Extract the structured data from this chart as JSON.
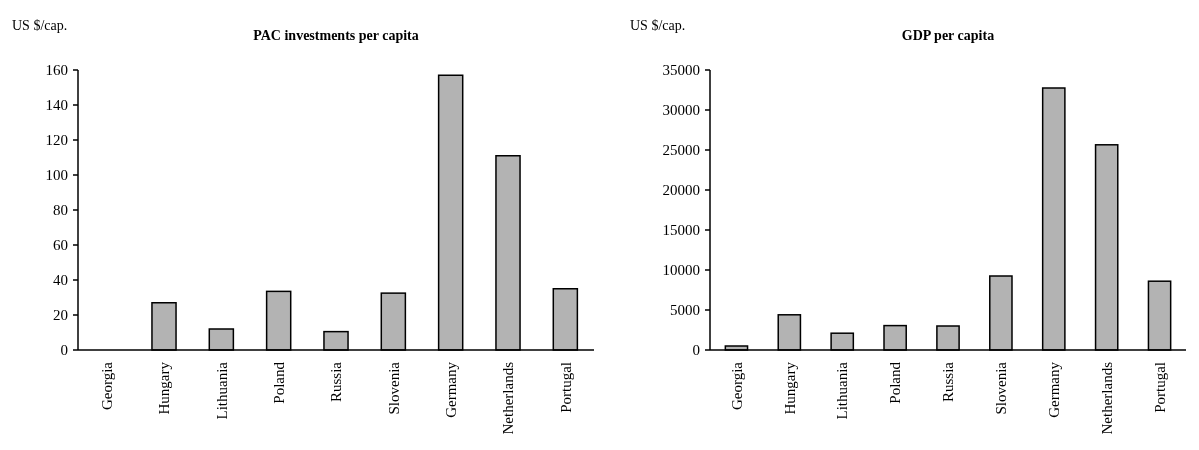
{
  "chart_data": [
    {
      "type": "bar",
      "title": "PAC investments per capita",
      "ylabel": "US $/cap.",
      "categories": [
        "Georgia",
        "Hungary",
        "Lithuania",
        "Poland",
        "Russia",
        "Slovenia",
        "Germany",
        "Netherlands",
        "Portugal"
      ],
      "values": [
        0,
        27,
        12,
        33.5,
        10.5,
        32.5,
        157,
        111,
        35
      ],
      "color": "#b3b3b3",
      "ylim": [
        0,
        160
      ],
      "yticks": [
        0,
        20,
        40,
        60,
        80,
        100,
        120,
        140,
        160
      ],
      "grid": false
    },
    {
      "type": "bar",
      "title": "GDP per capita",
      "ylabel": "US $/cap.",
      "categories": [
        "Georgia",
        "Hungary",
        "Lithuania",
        "Poland",
        "Russia",
        "Slovenia",
        "Germany",
        "Netherlands",
        "Portugal"
      ],
      "values": [
        500,
        4400,
        2100,
        3050,
        3000,
        9250,
        32750,
        25650,
        8600
      ],
      "color": "#b3b3b3",
      "ylim": [
        0,
        35000
      ],
      "yticks": [
        0,
        5000,
        10000,
        15000,
        20000,
        25000,
        30000,
        35000
      ],
      "grid": false
    }
  ]
}
